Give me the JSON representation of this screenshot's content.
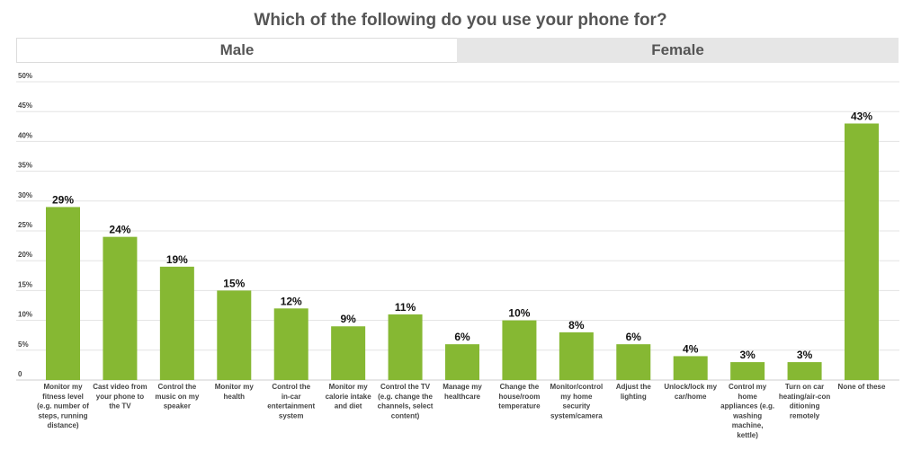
{
  "header": {
    "tabs": [
      {
        "label": "Male",
        "active": true
      },
      {
        "label": "Female",
        "active": false
      }
    ]
  },
  "colors": {
    "bar": "#86b833",
    "grid": "#e3e3e3"
  },
  "chart_data": {
    "type": "bar",
    "title": "Which of the following do you use your phone for?",
    "xlabel": "",
    "ylabel": "",
    "ylim": [
      0,
      50
    ],
    "yticks": [
      {
        "value": 0,
        "label": "0"
      },
      {
        "value": 5,
        "label": "5%"
      },
      {
        "value": 10,
        "label": "10%"
      },
      {
        "value": 15,
        "label": "15%"
      },
      {
        "value": 20,
        "label": "20%"
      },
      {
        "value": 25,
        "label": "25%"
      },
      {
        "value": 30,
        "label": "30%"
      },
      {
        "value": 35,
        "label": "35%"
      },
      {
        "value": 40,
        "label": "40%"
      },
      {
        "value": 45,
        "label": "45%"
      },
      {
        "value": 50,
        "label": "50%"
      }
    ],
    "grid": true,
    "legend": "none",
    "categories": [
      [
        "Monitor my",
        "fitness level",
        "(e.g. number of",
        "steps, running",
        "distance)"
      ],
      [
        "Cast video from",
        "your phone to",
        "the TV"
      ],
      [
        "Control the",
        "music on my",
        "speaker"
      ],
      [
        "Monitor my",
        "health"
      ],
      [
        "Control the",
        "in-car",
        "entertainment",
        "system"
      ],
      [
        "Monitor my",
        "calorie intake",
        "and diet"
      ],
      [
        "Control the TV",
        "(e.g. change the",
        "channels, select",
        "content)"
      ],
      [
        "Manage my",
        "healthcare"
      ],
      [
        "Change the",
        "house/room",
        "temperature"
      ],
      [
        "Monitor/control",
        "my home",
        "security",
        "system/camera"
      ],
      [
        "Adjust the",
        "lighting"
      ],
      [
        "Unlock/lock my",
        "car/home"
      ],
      [
        "Control my",
        "home",
        "appliances (e.g.",
        "washing",
        "machine,",
        "kettle)"
      ],
      [
        "Turn on car",
        "heating/air-con",
        "ditioning",
        "remotely"
      ],
      [
        "None of these"
      ]
    ],
    "values": [
      29,
      24,
      19,
      15,
      12,
      9,
      11,
      6,
      10,
      8,
      6,
      4,
      3,
      3,
      43
    ],
    "data_labels": [
      "29%",
      "24%",
      "19%",
      "15%",
      "12%",
      "9%",
      "11%",
      "6%",
      "10%",
      "8%",
      "6%",
      "4%",
      "3%",
      "3%",
      "43%"
    ]
  }
}
